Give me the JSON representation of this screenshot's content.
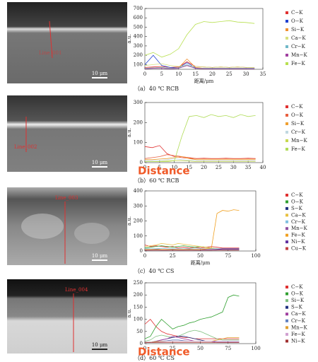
{
  "panels": [
    {
      "line_label": "Line_001",
      "scale_label": "10 μm",
      "caption": "（a）40 ℃ RCB"
    },
    {
      "line_label": "Line_002",
      "scale_label": "10 μm",
      "caption": "（b）60 ℃ RCB"
    },
    {
      "line_label": "Line_003",
      "scale_label": "10 μm",
      "caption": "（c）40 ℃ CS"
    },
    {
      "line_label": "Line_004",
      "scale_label": "10 μm",
      "caption": "（d）60 ℃ CS"
    }
  ],
  "chart_data": [
    {
      "type": "line",
      "y_label": "a.u.",
      "x_label": "距离/μm",
      "xlim": [
        0,
        35
      ],
      "xticks": [
        0,
        5,
        10,
        15,
        20,
        25,
        30,
        35
      ],
      "ylim": [
        50,
        700
      ],
      "yticks": [
        100,
        200,
        300,
        400,
        500,
        600,
        700
      ],
      "x": [
        0,
        2.5,
        5,
        7.5,
        10,
        12.5,
        15,
        17.5,
        20,
        22.5,
        25,
        27.5,
        30,
        32.5
      ],
      "series": [
        {
          "name": "C−K",
          "color": "#e03030",
          "values": [
            70,
            75,
            80,
            70,
            75,
            130,
            80,
            75,
            70,
            75,
            70,
            75,
            70,
            70
          ]
        },
        {
          "name": "O−K",
          "color": "#2040d0",
          "values": [
            100,
            200,
            90,
            70,
            65,
            120,
            65,
            60,
            60,
            60,
            60,
            60,
            60,
            60
          ]
        },
        {
          "name": "Si−K",
          "color": "#f09030",
          "values": [
            60,
            65,
            70,
            60,
            65,
            160,
            70,
            60,
            60,
            60,
            60,
            60,
            60,
            60
          ]
        },
        {
          "name": "Ca−K",
          "color": "#d8e080",
          "values": [
            90,
            100,
            110,
            90,
            80,
            90,
            80,
            75,
            70,
            75,
            70,
            75,
            70,
            70
          ]
        },
        {
          "name": "Cr−K",
          "color": "#70b8c8",
          "values": [
            60,
            65,
            70,
            60,
            65,
            100,
            60,
            60,
            60,
            60,
            60,
            60,
            60,
            60
          ]
        },
        {
          "name": "Mn−K",
          "color": "#a040a0",
          "values": [
            55,
            60,
            60,
            55,
            60,
            90,
            60,
            55,
            55,
            55,
            55,
            55,
            55,
            55
          ]
        },
        {
          "name": "Fe−K",
          "color": "#b8e050",
          "values": [
            200,
            230,
            180,
            210,
            270,
            420,
            530,
            560,
            550,
            560,
            570,
            555,
            550,
            540
          ]
        }
      ]
    },
    {
      "type": "line",
      "y_label": "a.u.",
      "annotation": "Distance",
      "xlim": [
        0,
        40
      ],
      "xticks": [
        0,
        5,
        10,
        15,
        20,
        25,
        30,
        35,
        40
      ],
      "ylim": [
        0,
        300
      ],
      "yticks": [
        0,
        100,
        200,
        300
      ],
      "x": [
        0,
        2.5,
        5,
        7.5,
        10,
        12.5,
        15,
        17.5,
        20,
        22.5,
        25,
        27.5,
        30,
        32.5,
        35,
        37.5
      ],
      "series": [
        {
          "name": "C−K",
          "color": "#e03030",
          "values": [
            80,
            75,
            85,
            45,
            30,
            25,
            22,
            20,
            22,
            20,
            20,
            22,
            20,
            20,
            22,
            20
          ]
        },
        {
          "name": "O−K",
          "color": "#e86040",
          "values": [
            20,
            25,
            30,
            40,
            35,
            30,
            25,
            20,
            20,
            20,
            20,
            20,
            20,
            20,
            20,
            20
          ]
        },
        {
          "name": "Si−K",
          "color": "#f0a030",
          "values": [
            15,
            15,
            18,
            20,
            25,
            30,
            20,
            15,
            15,
            15,
            15,
            15,
            15,
            15,
            15,
            15
          ]
        },
        {
          "name": "Cr−K",
          "color": "#c0d8e0",
          "values": [
            10,
            10,
            12,
            15,
            20,
            15,
            12,
            10,
            10,
            10,
            10,
            10,
            10,
            10,
            10,
            10
          ]
        },
        {
          "name": "Mn−K",
          "color": "#c8d850",
          "values": [
            5,
            5,
            6,
            8,
            10,
            10,
            8,
            5,
            5,
            5,
            5,
            5,
            5,
            5,
            5,
            5
          ]
        },
        {
          "name": "Fe−K",
          "color": "#b0dc58",
          "values": [
            5,
            5,
            5,
            5,
            10,
            130,
            230,
            235,
            225,
            240,
            230,
            235,
            225,
            240,
            230,
            235
          ]
        }
      ]
    },
    {
      "type": "line",
      "y_label": "a.u.",
      "x_label": "距离/μm",
      "xlim": [
        0,
        100
      ],
      "xticks": [
        0,
        25,
        50,
        75,
        100
      ],
      "ylim": [
        0,
        400
      ],
      "yticks": [
        0,
        100,
        200,
        300,
        400
      ],
      "x": [
        0,
        5,
        10,
        15,
        20,
        25,
        30,
        35,
        40,
        45,
        50,
        55,
        60,
        65,
        70,
        75,
        80,
        85
      ],
      "series": [
        {
          "name": "C−K",
          "color": "#e03030",
          "values": [
            40,
            30,
            35,
            30,
            25,
            30,
            20,
            25,
            20,
            25,
            20,
            25,
            30,
            25,
            20,
            20,
            20,
            20
          ]
        },
        {
          "name": "O−K",
          "color": "#30a030",
          "values": [
            20,
            25,
            30,
            35,
            30,
            25,
            30,
            35,
            30,
            25,
            30,
            25,
            20,
            15,
            10,
            10,
            10,
            10
          ]
        },
        {
          "name": "S−K",
          "color": "#203080",
          "values": [
            10,
            10,
            12,
            10,
            10,
            12,
            10,
            10,
            12,
            10,
            10,
            10,
            10,
            10,
            10,
            10,
            10,
            10
          ]
        },
        {
          "name": "Ca−K",
          "color": "#e8c040",
          "values": [
            30,
            35,
            40,
            50,
            45,
            40,
            50,
            45,
            40,
            35,
            30,
            25,
            20,
            15,
            15,
            15,
            15,
            15
          ]
        },
        {
          "name": "Cr−K",
          "color": "#80c0e0",
          "values": [
            15,
            15,
            15,
            18,
            15,
            15,
            15,
            15,
            15,
            15,
            15,
            15,
            15,
            15,
            15,
            15,
            15,
            15
          ]
        },
        {
          "name": "Mn−K",
          "color": "#9050a0",
          "values": [
            10,
            10,
            10,
            10,
            10,
            10,
            10,
            10,
            10,
            10,
            10,
            10,
            10,
            10,
            10,
            10,
            10,
            10
          ]
        },
        {
          "name": "Fe−K",
          "color": "#f0a020",
          "values": [
            10,
            10,
            10,
            10,
            10,
            10,
            10,
            10,
            10,
            10,
            10,
            15,
            20,
            250,
            270,
            265,
            275,
            270
          ]
        },
        {
          "name": "Ni−K",
          "color": "#6030a0",
          "values": [
            5,
            5,
            5,
            5,
            5,
            5,
            5,
            5,
            5,
            5,
            5,
            5,
            5,
            10,
            15,
            15,
            15,
            15
          ]
        },
        {
          "name": "Cu−K",
          "color": "#c04040",
          "values": [
            5,
            5,
            5,
            5,
            5,
            5,
            5,
            5,
            5,
            5,
            5,
            5,
            5,
            5,
            5,
            5,
            5,
            5
          ]
        }
      ]
    },
    {
      "type": "line",
      "y_label": "a.u.",
      "annotation": "Distance",
      "xlim": [
        0,
        100
      ],
      "xticks": [
        0,
        25,
        50,
        75,
        100
      ],
      "ylim": [
        0,
        250
      ],
      "yticks": [
        0,
        50,
        100,
        150,
        200,
        250
      ],
      "x": [
        0,
        5,
        10,
        15,
        20,
        25,
        30,
        35,
        40,
        45,
        50,
        55,
        60,
        65,
        70,
        75,
        80,
        85
      ],
      "series": [
        {
          "name": "C−K",
          "color": "#e03030",
          "values": [
            80,
            100,
            70,
            50,
            40,
            35,
            30,
            25,
            25,
            20,
            20,
            20,
            20,
            20,
            20,
            20,
            20,
            20
          ]
        },
        {
          "name": "O−K",
          "color": "#30a030",
          "values": [
            20,
            30,
            70,
            100,
            80,
            60,
            70,
            75,
            85,
            90,
            100,
            105,
            110,
            120,
            130,
            190,
            200,
            195
          ]
        },
        {
          "name": "Si−K",
          "color": "#80c080",
          "values": [
            10,
            15,
            30,
            35,
            30,
            25,
            30,
            40,
            50,
            55,
            50,
            40,
            30,
            20,
            15,
            15,
            15,
            15
          ]
        },
        {
          "name": "S−K",
          "color": "#203080",
          "values": [
            5,
            5,
            10,
            15,
            20,
            25,
            30,
            30,
            25,
            20,
            15,
            10,
            10,
            5,
            5,
            5,
            5,
            5
          ]
        },
        {
          "name": "Ca−K",
          "color": "#a040a0",
          "values": [
            5,
            5,
            10,
            15,
            20,
            30,
            25,
            20,
            15,
            10,
            10,
            10,
            10,
            5,
            5,
            5,
            5,
            5
          ]
        },
        {
          "name": "Cr−K",
          "color": "#6080c0",
          "values": [
            5,
            5,
            8,
            10,
            12,
            15,
            15,
            12,
            10,
            10,
            10,
            10,
            10,
            10,
            10,
            10,
            10,
            10
          ]
        },
        {
          "name": "Mn−K",
          "color": "#e0a030",
          "values": [
            5,
            5,
            8,
            10,
            10,
            10,
            10,
            10,
            10,
            10,
            10,
            10,
            10,
            15,
            20,
            25,
            25,
            25
          ]
        },
        {
          "name": "Fe−K",
          "color": "#d0a0d0",
          "values": [
            5,
            5,
            5,
            8,
            10,
            10,
            10,
            10,
            10,
            10,
            10,
            10,
            10,
            10,
            10,
            10,
            10,
            10
          ]
        },
        {
          "name": "Ni−K",
          "color": "#a03030",
          "values": [
            5,
            5,
            5,
            5,
            5,
            5,
            5,
            5,
            5,
            5,
            5,
            5,
            5,
            5,
            5,
            5,
            5,
            5
          ]
        }
      ]
    }
  ]
}
